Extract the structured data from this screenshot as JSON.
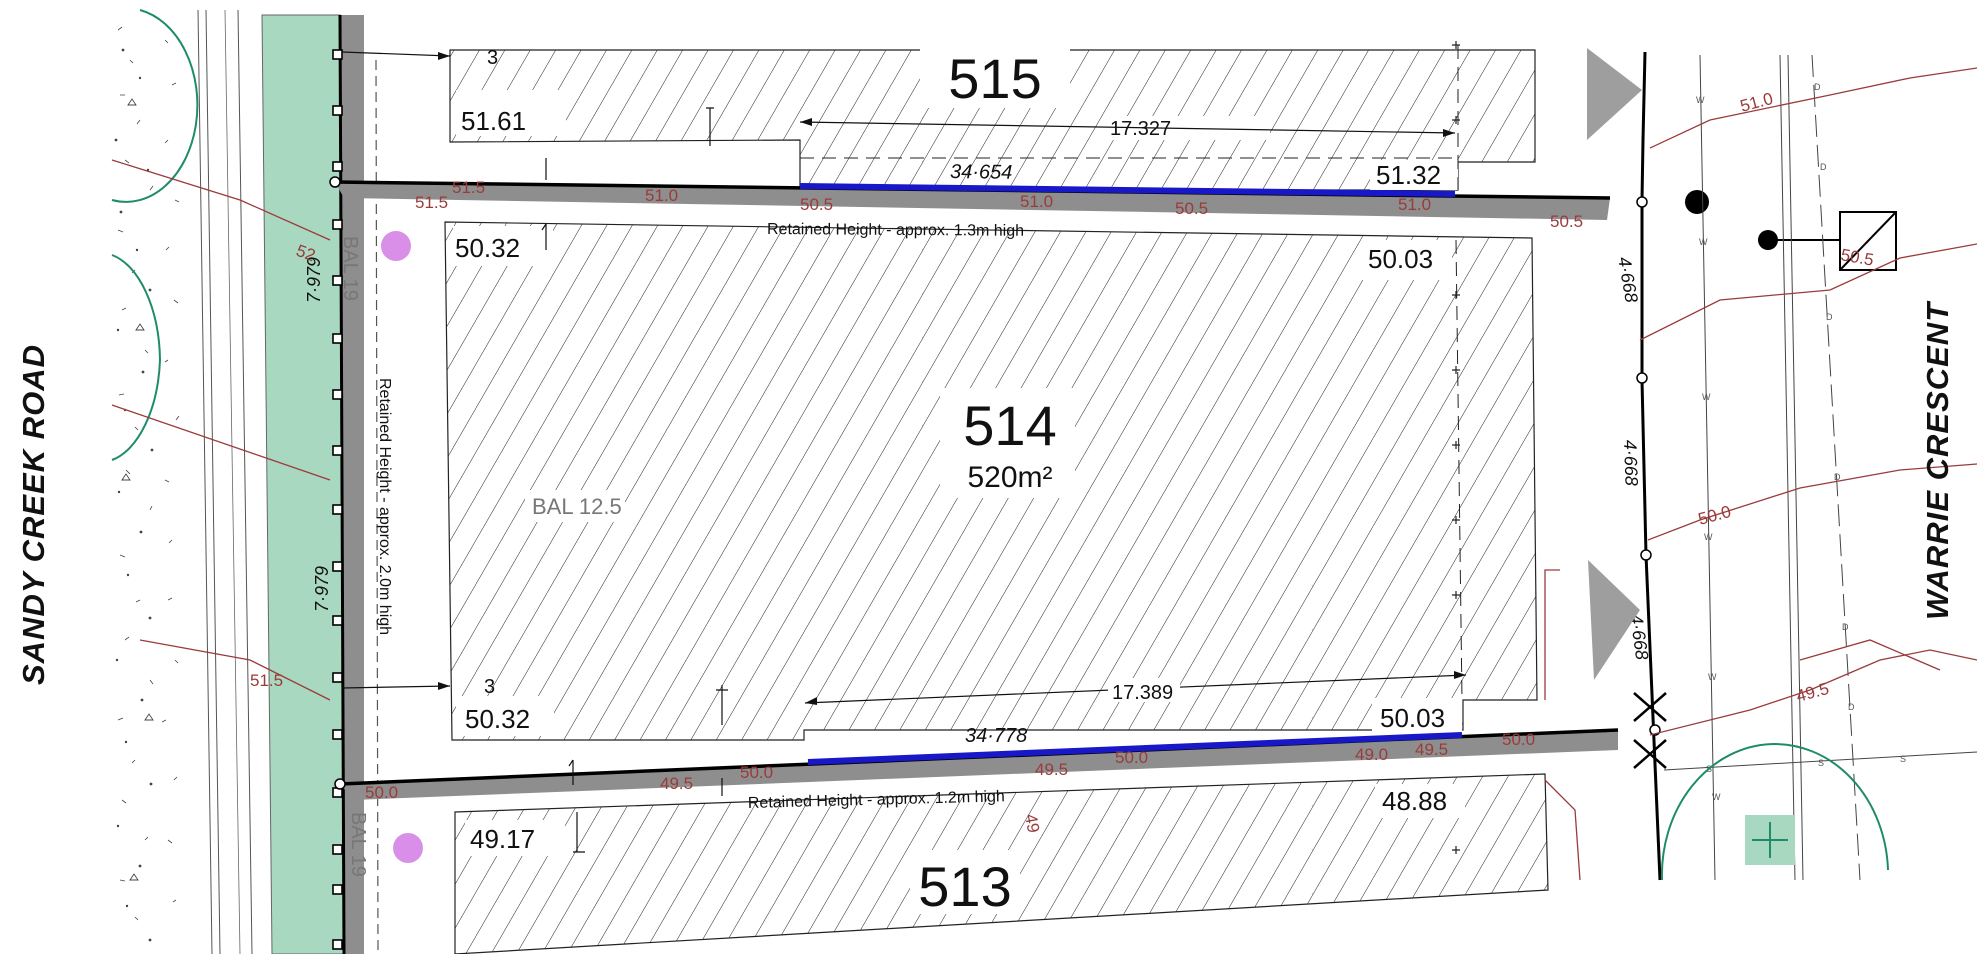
{
  "roads": {
    "west": "SANDY   CREEK   ROAD",
    "east": "WARRIE   CRESCENT"
  },
  "lots": {
    "lot_515": {
      "number": "515",
      "rl_west": "51.61",
      "rl_east": "51.32",
      "frontage": "34·654",
      "setback_dim": "17.327",
      "setback_west": "3"
    },
    "lot_514": {
      "number": "514",
      "area": "520m²",
      "rl_nw": "50.32",
      "rl_ne": "50.03",
      "rl_sw": "50.32",
      "rl_se": "50.03",
      "bal_zone": "BAL 12.5",
      "boundary_dim_east_1": "4·668",
      "boundary_dim_east_2": "4·668",
      "boundary_dim_east_3": "4·668",
      "boundary_dim_west_1": "7·979",
      "boundary_dim_west_2": "7·979",
      "setback_dim": "17.389",
      "setback_west": "3",
      "frontage": "34·778"
    },
    "lot_513": {
      "number": "513",
      "rl_west": "49.17",
      "rl_east": "48.88"
    }
  },
  "retaining_walls": {
    "north": "Retained Height - approx. 1.3m high",
    "south": "Retained Height - approx. 1.2m high",
    "west": "Retained Height - approx. 2.0m high"
  },
  "bal_labels": {
    "upper": "BAL 19",
    "lower": "BAL 19"
  },
  "contour_labels": [
    "51.0",
    "50.5",
    "51.5",
    "51.0",
    "50.5",
    "51.0",
    "50.5",
    "51.0",
    "50.5",
    "52",
    "51.5",
    "50.5",
    "50.0",
    "49.5",
    "50.0",
    "49.5",
    "50.0",
    "49.0",
    "49.5",
    "50.0",
    "49.5",
    "51.0",
    "50.0",
    "49.5",
    "50.5",
    "49"
  ],
  "service_markers": {
    "water": "W",
    "drainage": "D",
    "sewer": "S"
  },
  "colors": {
    "verge_green": "#a9d8c0",
    "contour": "#9a3b3b",
    "retaining_wall": "#8a8a8a",
    "retaining_face": "#1818c8",
    "tree_canopy": "#1e8c6a",
    "pit": "#d98ee8",
    "grey_fill": "#9e9e9e",
    "boundary": "#000000"
  },
  "icons": [
    "pole-dot-icon",
    "letterbox-icon",
    "tree-canopy-icon",
    "pit-marker-icon",
    "survey-cross-icon",
    "north-arrow-icon"
  ]
}
